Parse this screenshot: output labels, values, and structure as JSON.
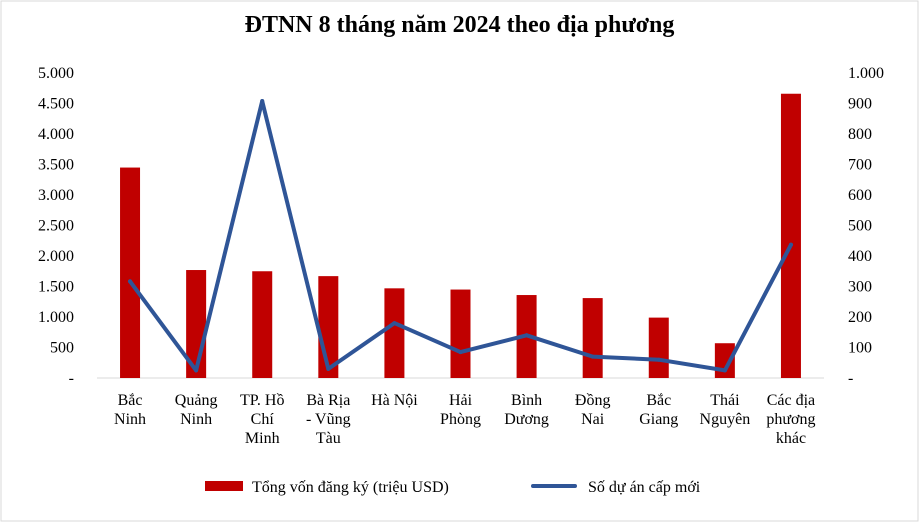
{
  "colors": {
    "bar": "#c00000",
    "line": "#2f5597",
    "frame": "#d9d9d9",
    "axis": "#d9d9d9"
  },
  "chart_data": {
    "type": "bar",
    "title": "ĐTNN 8 tháng năm 2024 theo địa phương",
    "categories": [
      [
        "Bắc",
        "Ninh"
      ],
      [
        "Quảng",
        "Ninh"
      ],
      [
        "TP. Hồ",
        "Chí",
        "Minh"
      ],
      [
        "Bà Rịa",
        "- Vũng",
        "Tàu"
      ],
      [
        "Hà Nội"
      ],
      [
        "Hải",
        "Phòng"
      ],
      [
        "Bình",
        "Dương"
      ],
      [
        "Đồng",
        "Nai"
      ],
      [
        "Bắc",
        "Giang"
      ],
      [
        "Thái",
        "Nguyên"
      ],
      [
        "Các địa",
        "phương",
        "khác"
      ]
    ],
    "series": [
      {
        "name": "Tổng vốn đăng ký (triệu  USD)",
        "type": "bar",
        "axis": "left",
        "values": [
          3450,
          1770,
          1750,
          1670,
          1470,
          1450,
          1360,
          1310,
          990,
          570,
          4660
        ]
      },
      {
        "name": "Số dự án cấp mới",
        "type": "line",
        "axis": "right",
        "values": [
          317,
          25,
          908,
          30,
          180,
          85,
          140,
          70,
          60,
          25,
          437
        ]
      }
    ],
    "y_left": {
      "ylim": [
        0,
        5000
      ],
      "tick_labels": [
        "-",
        "500",
        "1.000",
        "1.500",
        "2.000",
        "2.500",
        "3.000",
        "3.500",
        "4.000",
        "4.500",
        "5.000"
      ]
    },
    "y_right": {
      "ylim": [
        0,
        1000
      ],
      "tick_labels": [
        "-",
        "100",
        "200",
        "300",
        "400",
        "500",
        "600",
        "700",
        "800",
        "900",
        "1.000"
      ]
    },
    "legend_position": "bottom",
    "grid": false
  }
}
